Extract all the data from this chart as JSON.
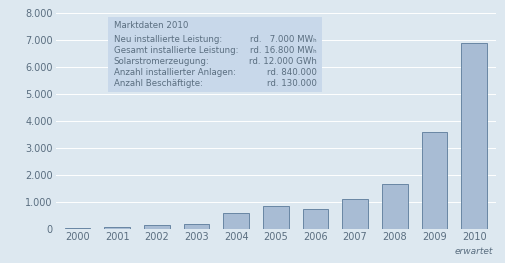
{
  "years": [
    "2000",
    "2001",
    "2002",
    "2003",
    "2004",
    "2005",
    "2006",
    "2007",
    "2008",
    "2009",
    "2010"
  ],
  "values": [
    44,
    75,
    130,
    190,
    600,
    837,
    750,
    1100,
    1650,
    3600,
    6900
  ],
  "bar_color": "#a8bcd4",
  "bar_edge_color": "#5a7a9a",
  "background_color": "#dde8f0",
  "ylim": [
    0,
    8000
  ],
  "yticks": [
    0,
    1000,
    2000,
    3000,
    4000,
    5000,
    6000,
    7000,
    8000
  ],
  "ytick_labels": [
    "0",
    "1.000",
    "2.000",
    "3.000",
    "4.000",
    "5.000",
    "6.000",
    "7.000",
    "8.000"
  ],
  "xlabel_erwartet": "erwartet",
  "annotation_title": "Marktdaten 2010",
  "annotation_lines": [
    [
      "Neu installierte Leistung:",
      "rd.   7.000 MWₕ"
    ],
    [
      "Gesamt installierte Leistung:",
      "rd. 16.800 MWₕ"
    ],
    [
      "Solarstromerzeugung:",
      "rd. 12.000 GWh"
    ],
    [
      "Anzahl installierter Anlagen:",
      "rd. 840.000"
    ],
    [
      "Anzahl Beschäftigte:",
      "rd. 130.000"
    ]
  ],
  "annotation_box_color": "#c8d8ea",
  "grid_color": "#ffffff",
  "font_color": "#5a6e80",
  "tick_fontsize": 7,
  "annotation_fontsize": 6.2
}
